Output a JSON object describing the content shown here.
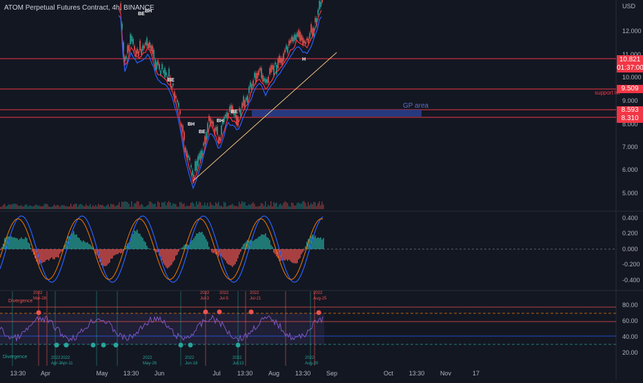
{
  "header": {
    "symbol_title": "ATOM Perpetual Futures Contract, 4h, BINANCE"
  },
  "price_axis": {
    "currency": "USD",
    "ticks": [
      "12.000",
      "11.000",
      "10.000",
      "9.000",
      "8.000",
      "7.000",
      "6.000",
      "5.000"
    ],
    "current_price": "10.821",
    "countdown": "01:37:00",
    "labels": [
      {
        "value": "9.509",
        "note": "support lvl"
      },
      {
        "value": "8.593",
        "note": ""
      },
      {
        "value": "8.310",
        "note": ""
      }
    ]
  },
  "annotations": {
    "gp_area": "GP area",
    "markers": [
      "BE",
      "BH",
      "BE",
      "BH",
      "BE",
      "BH",
      "BE",
      "H"
    ]
  },
  "oscillator_axis": {
    "ticks": [
      "0.400",
      "0.200",
      "0.000",
      "-0.200",
      "-0.400"
    ]
  },
  "rsi_axis": {
    "ticks": [
      "80.00",
      "60.00",
      "40.00",
      "20.00"
    ]
  },
  "rsi_labels": {
    "divergence_top": "Divergence",
    "divergence_bottom": "Divergence",
    "top_dates": [
      "2022\nMar-28",
      "2022\nJul-3",
      "2022\nJul-5",
      "2022\nJul-21",
      "2022\nAug-25"
    ],
    "bottom_dates": [
      "2022\nApr-3",
      "2022\nApr-11",
      "2022\nMay-26",
      "2022\nJun-18",
      "2022\nJul-13",
      "2022\nAug-20"
    ]
  },
  "time_axis": {
    "labels": [
      "13:30",
      "Apr",
      "May",
      "13:30",
      "Jun",
      "Jul",
      "13:30",
      "Aug",
      "13:30",
      "Sep",
      "Oct",
      "13:30",
      "Nov",
      "17"
    ]
  },
  "colors": {
    "background": "#131722",
    "bull": "#26a69a",
    "bear": "#ef5350",
    "support_line": "#f23645",
    "gp_area": "#2a3f8f",
    "rsi_line": "#7e57c2",
    "trendline": "#f0c27b"
  }
}
